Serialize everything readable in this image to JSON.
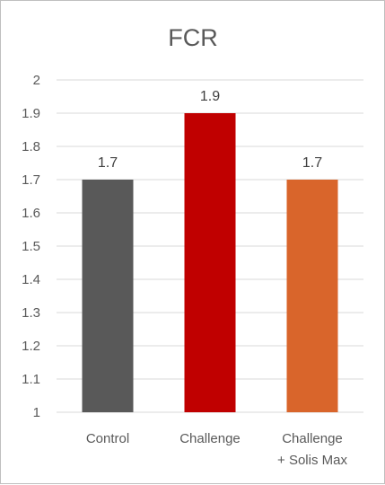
{
  "chart_data": {
    "type": "bar",
    "title": "FCR",
    "xlabel": "",
    "ylabel": "",
    "categories": [
      [
        "Control"
      ],
      [
        "Challenge"
      ],
      [
        "Challenge",
        "+ Solis Max"
      ]
    ],
    "values": [
      1.7,
      1.9,
      1.7
    ],
    "data_labels": [
      "1.7",
      "1.9",
      "1.7"
    ],
    "ylim": [
      1,
      2
    ],
    "yticks": [
      1,
      1.1,
      1.2,
      1.3,
      1.4,
      1.5,
      1.6,
      1.7,
      1.8,
      1.9,
      2
    ],
    "ytick_labels": [
      "1",
      "1.1",
      "1.2",
      "1.3",
      "1.4",
      "1.5",
      "1.6",
      "1.7",
      "1.8",
      "1.9",
      "2"
    ],
    "colors": [
      "#595959",
      "#c00000",
      "#d9652b"
    ],
    "grid": true,
    "legend": "none"
  },
  "style": {
    "grid_color": "#d9d9d9"
  }
}
